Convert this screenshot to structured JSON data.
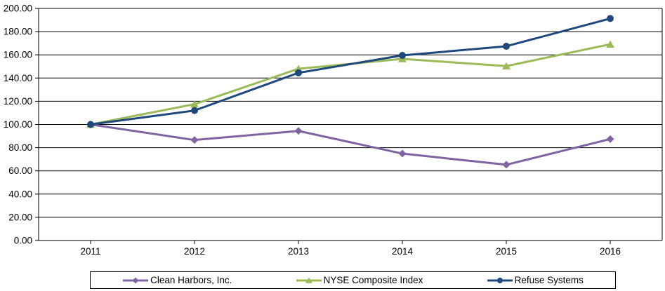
{
  "chart_data": {
    "type": "line",
    "title": "",
    "xlabel": "",
    "ylabel": "",
    "categories": [
      "2011",
      "2012",
      "2013",
      "2014",
      "2015",
      "2016"
    ],
    "series": [
      {
        "name": "Clean Harbors, Inc.",
        "marker": "diamond",
        "color": "#8064A2",
        "values": [
          100.0,
          86.6,
          94.4,
          74.9,
          65.3,
          87.4
        ]
      },
      {
        "name": "NYSE Composite Index",
        "marker": "triangle",
        "color": "#9BBB59",
        "values": [
          100.0,
          117.5,
          148.0,
          156.5,
          150.3,
          169.1
        ]
      },
      {
        "name": "Refuse Systems",
        "marker": "circle",
        "color": "#1F497D",
        "values": [
          100.0,
          112.0,
          144.5,
          159.5,
          167.4,
          191.3
        ]
      }
    ],
    "ylim": [
      0,
      200
    ],
    "ytick_step": 20,
    "ytick_labels": [
      "0.00",
      "20.00",
      "40.00",
      "60.00",
      "80.00",
      "100.00",
      "120.00",
      "140.00",
      "160.00",
      "180.00",
      "200.00"
    ],
    "grid": true,
    "gridline_color": "#000000",
    "axis_color": "#000000",
    "legend_position": "bottom"
  }
}
